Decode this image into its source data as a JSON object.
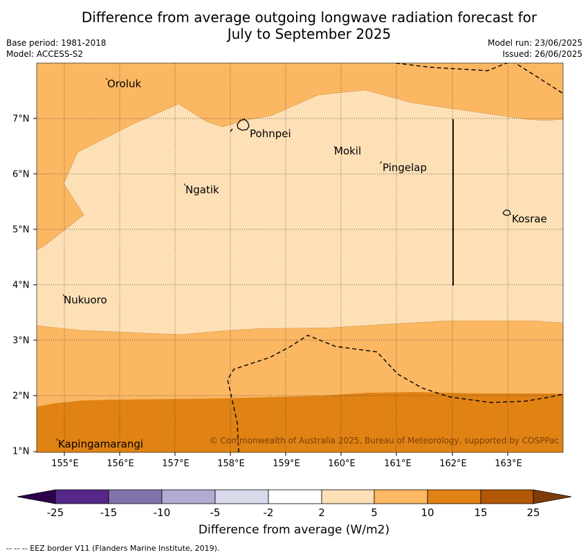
{
  "header": {
    "title_line1": "Difference from average outgoing longwave radiation forecast for",
    "title_line2": "July to September 2025",
    "base_period": "Base period: 1981-2018",
    "model": "Model: ACCESS-S2",
    "model_run": "Model run: 23/06/2025",
    "issued": "Issued: 26/06/2025"
  },
  "map": {
    "lat_labels": [
      "7°N",
      "6°N",
      "5°N",
      "4°N",
      "3°N",
      "2°N",
      "1°N"
    ],
    "lon_labels": [
      "155°E",
      "156°E",
      "157°E",
      "158°E",
      "159°E",
      "160°E",
      "161°E",
      "162°E",
      "163°E"
    ],
    "places": [
      {
        "name": "Oroluk"
      },
      {
        "name": "Pohnpei"
      },
      {
        "name": "Mokil"
      },
      {
        "name": "Pingelap"
      },
      {
        "name": "Ngatik"
      },
      {
        "name": "Kosrae"
      },
      {
        "name": "Nukuoro"
      },
      {
        "name": "Kapingamarangi"
      }
    ],
    "copyright": "© Commonwealth of Australia 2025, Bureau of Meteorology, supported by COSPPac",
    "colors": {
      "2_to_5": "#fde0b6",
      "5_to_10": "#fbb762",
      "10_to_15": "#e08214"
    }
  },
  "colorbar": {
    "labels": [
      "-25",
      "-15",
      "-10",
      "-5",
      "-2",
      "2",
      "5",
      "10",
      "15",
      "25"
    ],
    "colors": [
      "#2d004b",
      "#542788",
      "#8073ac",
      "#b2abd2",
      "#d8daeb",
      "#ffffff",
      "#fee0b6",
      "#fdb863",
      "#e08214",
      "#b35806",
      "#7f3b08"
    ],
    "title": "Difference from average (W/m2)"
  },
  "footnote": "--  --  -- EEZ border V11 (Flanders Marine Institute, 2019)."
}
